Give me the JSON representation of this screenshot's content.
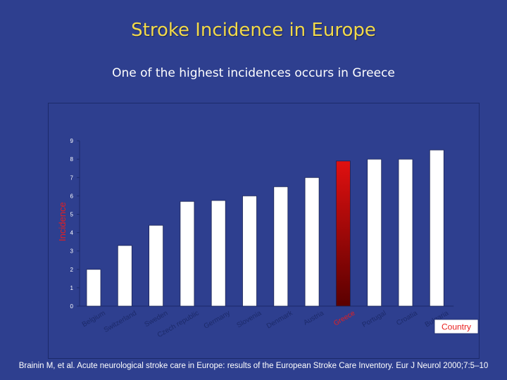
{
  "slide": {
    "title": "Stroke Incidence in Europe",
    "subtitle": "One of the highest incidences occurs in Greece",
    "citation": "Brainin M, et al. Acute neurological stroke care in Europe: results of the European Stroke Care Inventory. Eur J Neurol 2000;7:5–10"
  },
  "colors": {
    "background": "#2e3f8f",
    "title": "#f2d94a",
    "bar": "#ffffff",
    "highlight_bar_top": "#e01010",
    "highlight_bar_bottom": "#5a0000",
    "ylabel": "#e81e1e",
    "highlight_label": "#e81e1e",
    "category_label": "#1c2a6a"
  },
  "chart_data": {
    "type": "bar",
    "categories": [
      "Belgium",
      "Switzerland",
      "Sweden",
      "Czech republic",
      "Germany",
      "Slovenia",
      "Denmark",
      "Austria",
      "Greece",
      "Portugal",
      "Croatia",
      "Bulgaria"
    ],
    "values": [
      2.0,
      3.3,
      4.4,
      5.7,
      5.75,
      6.0,
      6.5,
      7.0,
      7.9,
      8.0,
      8.0,
      8.5
    ],
    "highlight": "Greece",
    "ylabel": "Incidence",
    "xlabel": "Country",
    "ylim": [
      0,
      9
    ],
    "yticks": [
      0,
      1,
      2,
      3,
      4,
      5,
      6,
      7,
      8,
      9
    ],
    "grid": false,
    "legend": "none"
  }
}
